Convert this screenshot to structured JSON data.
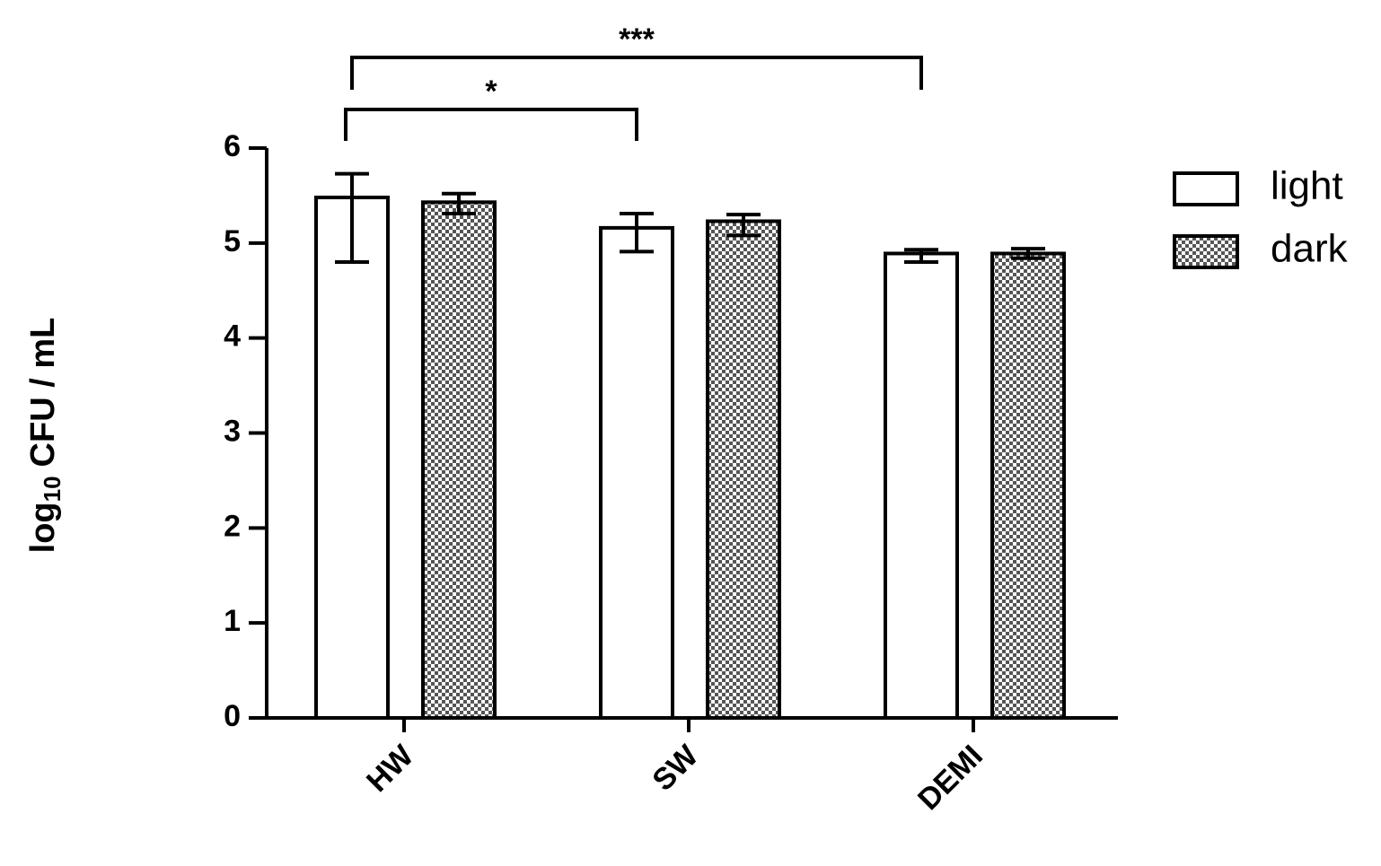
{
  "chart_data": {
    "type": "bar",
    "ylabel": {
      "text": "log",
      "subscript": "10",
      "unit": "CFU / mL"
    },
    "categories": [
      "HW",
      "SW",
      "DEMI"
    ],
    "series": [
      {
        "name": "light",
        "color": "#ffffff",
        "pattern": "none",
        "values": [
          5.48,
          5.16,
          4.89
        ],
        "err_plus": [
          0.25,
          0.15,
          0.04
        ],
        "err_minus": [
          0.68,
          0.25,
          0.09
        ]
      },
      {
        "name": "dark",
        "color": "#555555",
        "pattern": "checker",
        "values": [
          5.43,
          5.23,
          4.89
        ],
        "err_plus": [
          0.09,
          0.07,
          0.05
        ],
        "err_minus": [
          0.12,
          0.15,
          0.05
        ]
      }
    ],
    "ylim": [
      0,
      6
    ],
    "yticks": [
      0,
      1,
      2,
      3,
      4,
      5,
      6
    ],
    "grid": false,
    "legend": "right",
    "annotations": [
      {
        "text": "*",
        "groups": [
          "HW",
          "SW"
        ]
      },
      {
        "text": "***",
        "groups": [
          "HW",
          "DEMI"
        ]
      }
    ]
  }
}
